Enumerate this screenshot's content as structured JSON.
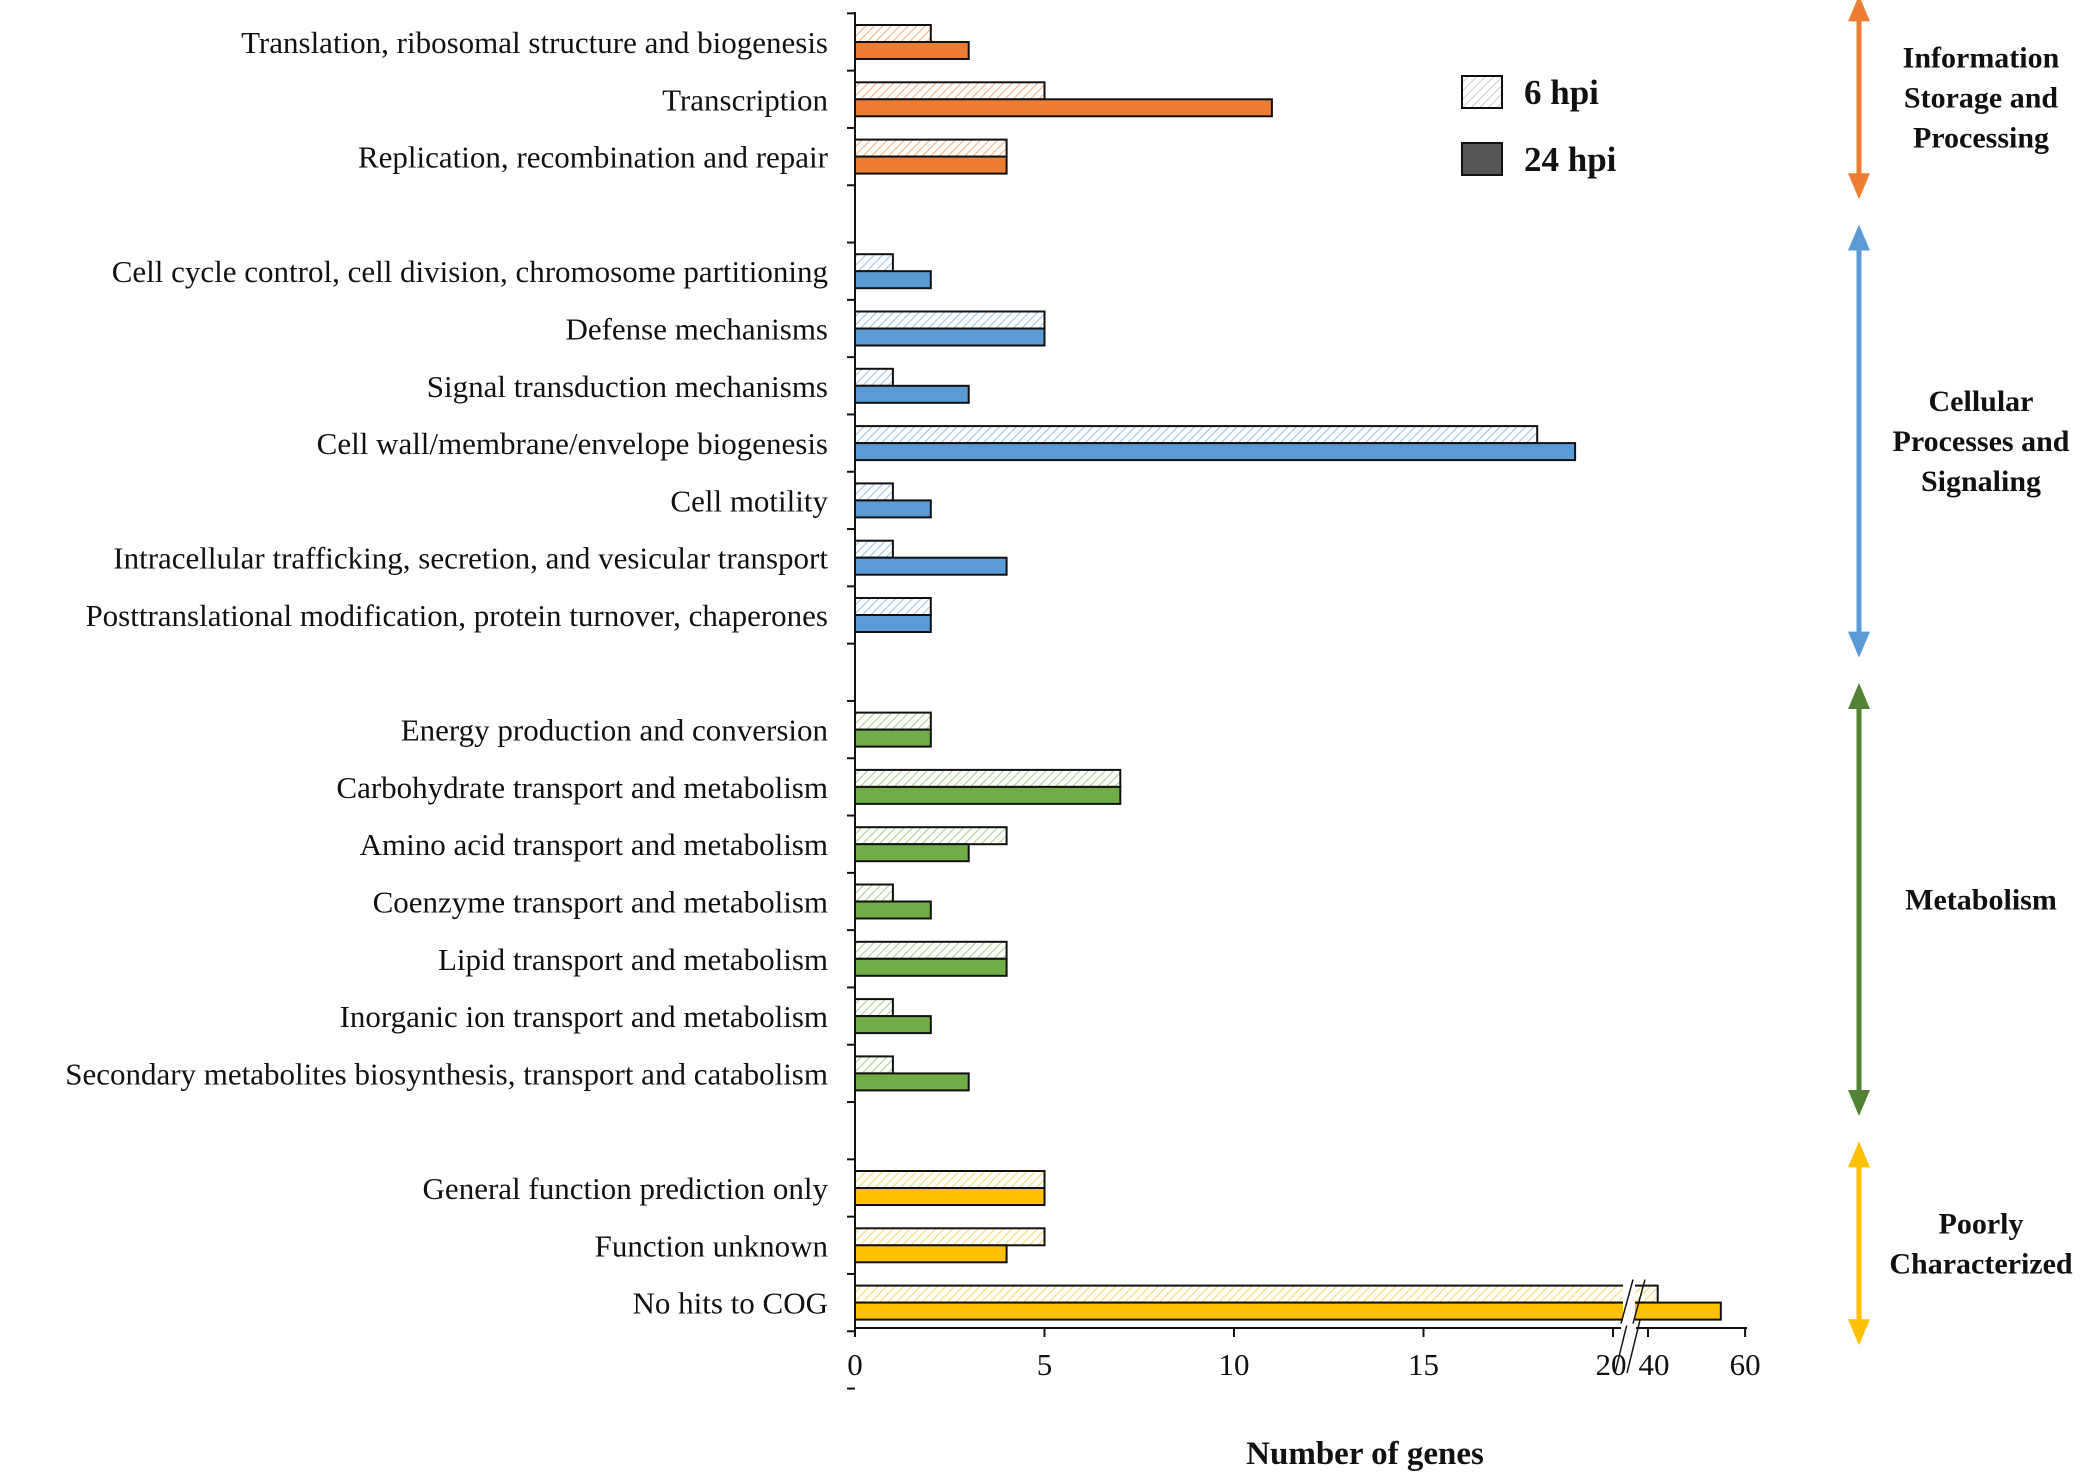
{
  "chart_data": {
    "type": "bar",
    "orientation": "horizontal",
    "xlabel": "Number of genes",
    "x_ticks": [
      "0",
      "5",
      "10",
      "15",
      "20",
      "40",
      "60"
    ],
    "x_axis_break": {
      "from": 20,
      "to": 40
    },
    "series": [
      {
        "name": "6 hpi",
        "style": "hatched"
      },
      {
        "name": "24 hpi",
        "style": "solid"
      }
    ],
    "legend_position": "top-right",
    "groups": [
      {
        "label": [
          "Information",
          "Storage and",
          "Processing"
        ],
        "color": "#ED7D31",
        "hatch_color": "#F4B183",
        "categories": [
          {
            "name": "Translation, ribosomal structure and biogenesis",
            "values": [
              2,
              3
            ]
          },
          {
            "name": "Transcription",
            "values": [
              5,
              11
            ]
          },
          {
            "name": "Replication, recombination and repair",
            "values": [
              4,
              4
            ]
          }
        ]
      },
      {
        "label": [
          "Cellular",
          "Processes and",
          "Signaling"
        ],
        "color": "#5B9BD5",
        "hatch_color": "#9DC3E6",
        "categories": [
          {
            "name": "Cell cycle control, cell division, chromosome partitioning",
            "values": [
              1,
              2
            ]
          },
          {
            "name": "Defense mechanisms",
            "values": [
              5,
              5
            ]
          },
          {
            "name": "Signal transduction mechanisms",
            "values": [
              1,
              3
            ]
          },
          {
            "name": "Cell wall/membrane/envelope biogenesis",
            "values": [
              18,
              19
            ]
          },
          {
            "name": "Cell motility",
            "values": [
              1,
              2
            ]
          },
          {
            "name": "Intracellular trafficking, secretion, and vesicular transport",
            "values": [
              1,
              4
            ]
          },
          {
            "name": "Posttranslational modification, protein turnover, chaperones",
            "values": [
              2,
              2
            ]
          }
        ]
      },
      {
        "label": [
          "Metabolism"
        ],
        "color": "#70AD47",
        "hatch_color": "#A9D18E",
        "categories": [
          {
            "name": "Energy production and conversion",
            "values": [
              2,
              2
            ]
          },
          {
            "name": "Carbohydrate transport and metabolism",
            "values": [
              7,
              7
            ]
          },
          {
            "name": "Amino acid transport and metabolism",
            "values": [
              4,
              3
            ]
          },
          {
            "name": "Coenzyme transport and metabolism",
            "values": [
              1,
              2
            ]
          },
          {
            "name": "Lipid transport and metabolism",
            "values": [
              4,
              4
            ]
          },
          {
            "name": "Inorganic ion transport and metabolism",
            "values": [
              1,
              2
            ]
          },
          {
            "name": "Secondary metabolites biosynthesis, transport and catabolism",
            "values": [
              1,
              3
            ]
          }
        ]
      },
      {
        "label": [
          "Poorly",
          "Characterized"
        ],
        "color": "#FFC000",
        "hatch_color": "#FFD966",
        "categories": [
          {
            "name": "General function prediction only",
            "values": [
              5,
              5
            ]
          },
          {
            "name": "Function unknown",
            "values": [
              5,
              4
            ]
          },
          {
            "name": "No hits to COG",
            "values": [
              42,
              55
            ]
          }
        ]
      }
    ]
  },
  "colors": {
    "axis": "#111111",
    "bar_outline": "#111111",
    "legend_24hpi_fill": "#555555",
    "group_arrow_colors": [
      "#ED7D31",
      "#5B9BD5",
      "#548235",
      "#FFC000"
    ]
  }
}
